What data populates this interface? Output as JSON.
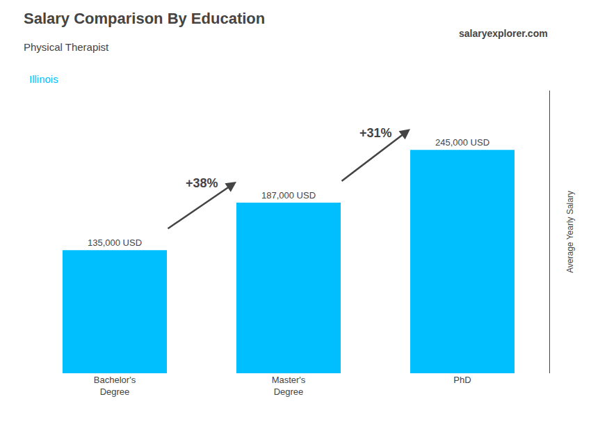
{
  "chart_data": {
    "type": "bar",
    "title": "Salary Comparison By Education",
    "subtitle": "Physical Therapist",
    "location": "Illinois",
    "brand": "salaryexplorer.com",
    "categories": [
      "Bachelor's\nDegree",
      "Master's\nDegree",
      "PhD"
    ],
    "values": [
      135000,
      187000,
      245000
    ],
    "value_labels": [
      "135,000 USD",
      "187,000 USD",
      "245,000 USD"
    ],
    "data_labels": true,
    "annotations": [
      "+38%",
      "+31%"
    ],
    "color": "#00BFFF",
    "ylabel": "Average Yearly Salary",
    "ylim": [
      0,
      310000
    ],
    "tick_labels": "x",
    "grid": false
  }
}
